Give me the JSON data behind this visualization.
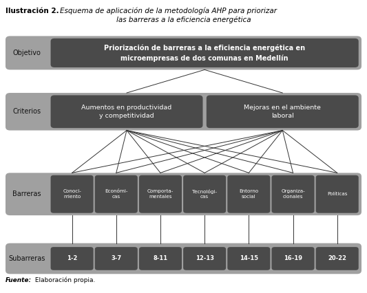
{
  "background_color": "#ffffff",
  "outer_bg": "#a0a0a0",
  "inner_box_color": "#4a4a4a",
  "text_white": "#ffffff",
  "text_dark": "#111111",
  "objetivo_label": "Objetivo",
  "objetivo_text": "Priorización de barreras a la eficiencia energética en\nmicroempresas de dos comunas en Medellín",
  "criterios_label": "Criterios",
  "criterios_boxes": [
    "Aumentos en productividad\ny competitividad",
    "Mejoras en el ambiente\nlaboral"
  ],
  "barreras_label": "Barreras",
  "barreras_boxes": [
    "Conoci-\nmiento",
    "Económi-\ncas",
    "Comporta-\nmentales",
    "Tecnológi-\ncas",
    "Entorno\nsocial",
    "Organiza-\ncionales",
    "Políticas"
  ],
  "subarreras_label": "Subarreras",
  "subarreras_boxes": [
    "1-2",
    "3-7",
    "8-11",
    "12-13",
    "14-15",
    "16-19",
    "20-22"
  ],
  "line_color": "#333333",
  "line_width": 0.7
}
